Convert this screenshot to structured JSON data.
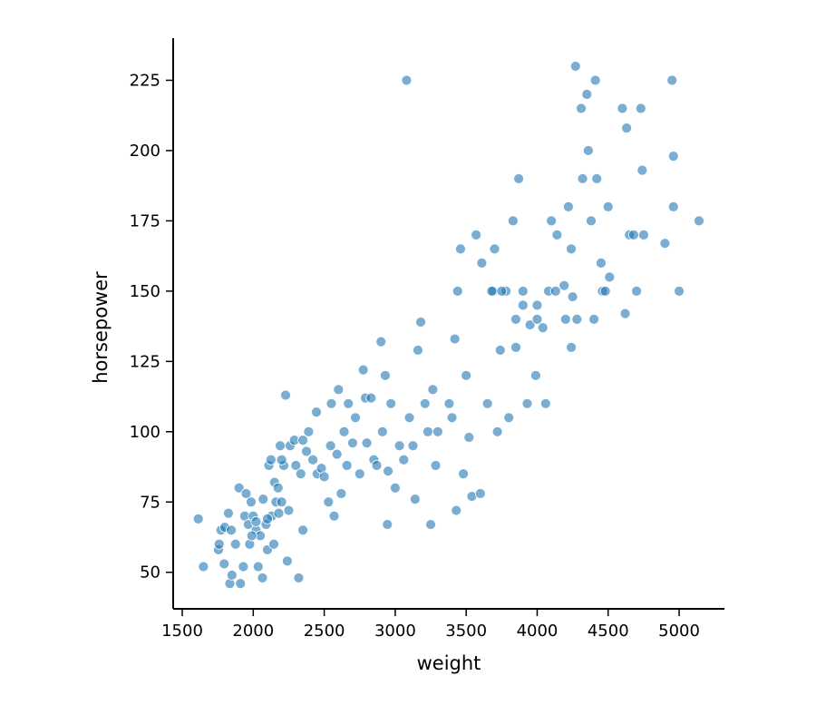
{
  "chart_data": {
    "type": "scatter",
    "xlabel": "weight",
    "ylabel": "horsepower",
    "color": "#1f77b4",
    "xlim": [
      1436,
      5319
    ],
    "ylim": [
      37,
      240
    ],
    "xticks": [
      1500,
      2000,
      2500,
      3000,
      3500,
      4000,
      4500,
      5000
    ],
    "yticks": [
      50,
      75,
      100,
      125,
      150,
      175,
      200,
      225
    ],
    "x": [
      1613,
      1649,
      1755,
      1760,
      1773,
      1795,
      1800,
      1825,
      1835,
      1850,
      1845,
      1875,
      1900,
      1910,
      1930,
      1940,
      1950,
      1965,
      1975,
      1985,
      2000,
      2020,
      2035,
      2050,
      2065,
      2070,
      2090,
      2100,
      2110,
      2125,
      2130,
      2145,
      2150,
      2160,
      2175,
      2190,
      2200,
      2215,
      2228,
      2240,
      2250,
      2260,
      2290,
      2300,
      2320,
      2335,
      2350,
      2375,
      2390,
      2420,
      2445,
      2450,
      2480,
      2500,
      2530,
      2545,
      2570,
      2590,
      2600,
      2620,
      2640,
      2660,
      2670,
      2700,
      2720,
      2750,
      2775,
      2790,
      2800,
      2830,
      2850,
      2870,
      2900,
      2910,
      2930,
      2945,
      2950,
      2970,
      3000,
      3030,
      3060,
      3080,
      3100,
      3125,
      3140,
      3160,
      3180,
      3210,
      3230,
      3250,
      3265,
      3285,
      3300,
      3380,
      3400,
      3430,
      3440,
      3460,
      3480,
      3500,
      3520,
      3540,
      3570,
      3600,
      3610,
      3650,
      3690,
      3700,
      3720,
      3780,
      3800,
      3830,
      3850,
      3870,
      3900,
      3930,
      3950,
      3990,
      4040,
      4060,
      4080,
      4100,
      4140,
      4190,
      4220,
      4240,
      4270,
      4280,
      4310,
      4320,
      4350,
      4360,
      4380,
      4410,
      4420,
      4450,
      4460,
      4480,
      4500,
      4510,
      4600,
      4630,
      4620,
      4650,
      4680,
      4700,
      4730,
      4740,
      4750,
      4900,
      4950,
      4960,
      4960,
      5000,
      5140,
      3680,
      3750,
      3900,
      4000,
      4130,
      4250,
      4000,
      3850,
      4200,
      4400,
      3420,
      3740,
      4240,
      2550,
      2350,
      2200,
      2100,
      2180,
      2020,
      1990
    ],
    "values": [
      69,
      52,
      58,
      60,
      65,
      53,
      66,
      71,
      46,
      49,
      65,
      60,
      80,
      46,
      52,
      70,
      78,
      67,
      60,
      75,
      70,
      65,
      52,
      63,
      48,
      76,
      67,
      58,
      88,
      90,
      70,
      60,
      82,
      75,
      80,
      95,
      75,
      88,
      113,
      54,
      72,
      95,
      97,
      88,
      48,
      85,
      65,
      93,
      100,
      90,
      107,
      85,
      87,
      84,
      75,
      95,
      70,
      92,
      115,
      78,
      100,
      88,
      110,
      96,
      105,
      85,
      122,
      112,
      96,
      112,
      90,
      88,
      132,
      100,
      120,
      67,
      86,
      110,
      80,
      95,
      90,
      225,
      105,
      95,
      76,
      129,
      139,
      110,
      100,
      67,
      115,
      88,
      100,
      110,
      105,
      72,
      150,
      165,
      85,
      120,
      98,
      77,
      170,
      78,
      160,
      110,
      150,
      165,
      100,
      150,
      105,
      175,
      130,
      190,
      145,
      110,
      138,
      120,
      137,
      110,
      150,
      175,
      170,
      152,
      180,
      165,
      230,
      140,
      215,
      190,
      220,
      200,
      175,
      225,
      190,
      160,
      150,
      150,
      180,
      155,
      215,
      208,
      142,
      170,
      170,
      150,
      215,
      193,
      170,
      167,
      225,
      198,
      180,
      150,
      175,
      150,
      150,
      150,
      145,
      150,
      148,
      140,
      140,
      140,
      140,
      133,
      129,
      130,
      110,
      97,
      90,
      69,
      71,
      68,
      63
    ]
  }
}
